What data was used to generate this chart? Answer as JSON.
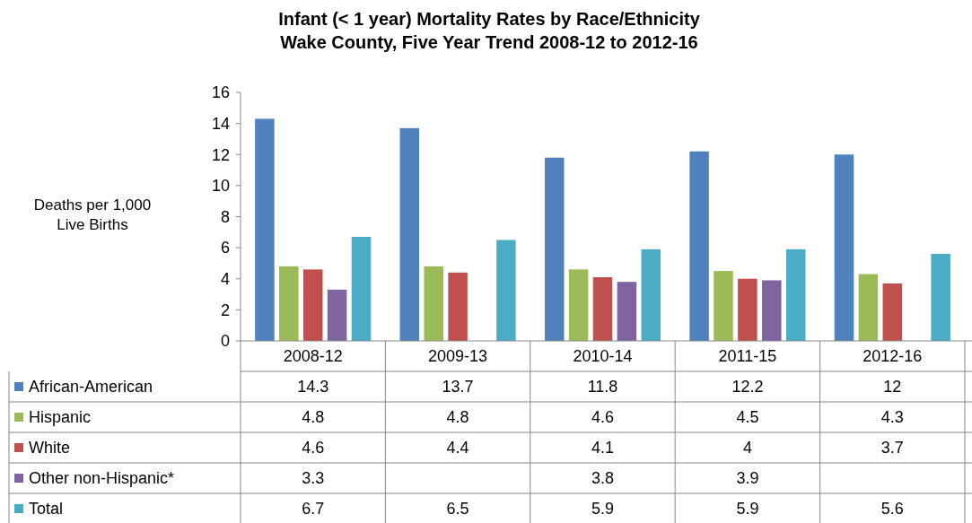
{
  "chart_data": {
    "type": "bar",
    "title": "Infant (< 1 year) Mortality Rates by Race/Ethnicity",
    "subtitle": "Wake County, Five Year Trend 2008-12 to 2012-16",
    "ylabel": "Deaths per 1,000 Live Births",
    "categories": [
      "2008-12",
      "2009-13",
      "2010-14",
      "2011-15",
      "2012-16"
    ],
    "series": [
      {
        "name": "African-American",
        "color": "#4f81bd",
        "values": [
          14.3,
          13.7,
          11.8,
          12.2,
          12
        ]
      },
      {
        "name": "Hispanic",
        "color": "#9bbb59",
        "values": [
          4.8,
          4.8,
          4.6,
          4.5,
          4.3
        ]
      },
      {
        "name": "White",
        "color": "#c0504d",
        "values": [
          4.6,
          4.4,
          4.1,
          4,
          3.7
        ]
      },
      {
        "name": "Other non-Hispanic*",
        "color": "#8064a2",
        "values": [
          3.3,
          null,
          3.8,
          3.9,
          null
        ]
      },
      {
        "name": "Total",
        "color": "#4bacc6",
        "values": [
          6.7,
          6.5,
          5.9,
          5.9,
          5.6
        ]
      }
    ],
    "ylim": [
      0,
      16
    ],
    "yticks": [
      0,
      2,
      4,
      6,
      8,
      10,
      12,
      14,
      16
    ],
    "data_labels": true,
    "legend": "bottom"
  }
}
